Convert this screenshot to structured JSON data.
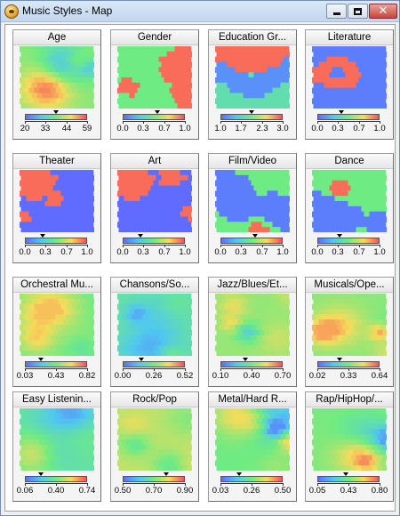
{
  "window": {
    "title": "Music Styles - Map",
    "close_glyph": "✕"
  },
  "panels": [
    {
      "title": "Age",
      "ticks": [
        "20",
        "33",
        "44",
        "59"
      ],
      "marker": 0.5,
      "seed": 11,
      "mode": "smooth",
      "cmin": 0.1,
      "cmax": 1.0
    },
    {
      "title": "Gender",
      "ticks": [
        "0.0",
        "0.3",
        "0.7",
        "1.0"
      ],
      "marker": 0.55,
      "seed": 23,
      "mode": "patchy",
      "cmin": 0.0,
      "cmax": 1.0
    },
    {
      "title": "Education Gr...",
      "ticks": [
        "1.0",
        "1.7",
        "2.3",
        "3.0"
      ],
      "marker": 0.5,
      "seed": 37,
      "mode": "band",
      "cmin": 0.0,
      "cmax": 1.0
    },
    {
      "title": "Literature",
      "ticks": [
        "0.0",
        "0.3",
        "0.7",
        "1.0"
      ],
      "marker": 0.38,
      "seed": 41,
      "mode": "blob",
      "cmin": 0.0,
      "cmax": 1.0
    },
    {
      "title": "Theater",
      "ticks": [
        "0.0",
        "0.3",
        "0.7",
        "1.0"
      ],
      "marker": 0.28,
      "seed": 53,
      "mode": "corner",
      "cmin": 0.0,
      "cmax": 1.0
    },
    {
      "title": "Art",
      "ticks": [
        "0.0",
        "0.3",
        "0.7",
        "1.0"
      ],
      "marker": 0.28,
      "seed": 61,
      "mode": "corner",
      "cmin": 0.0,
      "cmax": 1.0
    },
    {
      "title": "Film/Video",
      "ticks": [
        "0.0",
        "0.3",
        "0.7",
        "1.0"
      ],
      "marker": 0.55,
      "seed": 71,
      "mode": "patchy",
      "cmin": 0.0,
      "cmax": 1.0
    },
    {
      "title": "Dance",
      "ticks": [
        "0.0",
        "0.3",
        "0.7",
        "1.0"
      ],
      "marker": 0.35,
      "seed": 83,
      "mode": "patchy",
      "cmin": 0.0,
      "cmax": 1.0
    },
    {
      "title": "Orchestral Mu...",
      "ticks": [
        "0.03",
        "0.43",
        "0.82"
      ],
      "marker": 0.25,
      "seed": 97,
      "mode": "smooth",
      "cmin": 0.2,
      "cmax": 0.8
    },
    {
      "title": "Chansons/So...",
      "ticks": [
        "0.00",
        "0.26",
        "0.52"
      ],
      "marker": 0.3,
      "seed": 101,
      "mode": "smooth",
      "cmin": 0.15,
      "cmax": 0.7
    },
    {
      "title": "Jazz/Blues/Et...",
      "ticks": [
        "0.10",
        "0.40",
        "0.70"
      ],
      "marker": 0.4,
      "seed": 113,
      "mode": "smooth",
      "cmin": 0.25,
      "cmax": 0.9
    },
    {
      "title": "Musicals/Ope...",
      "ticks": [
        "0.02",
        "0.33",
        "0.64"
      ],
      "marker": 0.35,
      "seed": 127,
      "mode": "smooth",
      "cmin": 0.25,
      "cmax": 0.85
    },
    {
      "title": "Easy Listenin...",
      "ticks": [
        "0.06",
        "0.40",
        "0.74"
      ],
      "marker": 0.25,
      "seed": 131,
      "mode": "smooth",
      "cmin": 0.1,
      "cmax": 0.75
    },
    {
      "title": "Rock/Pop",
      "ticks": [
        "0.50",
        "0.70",
        "0.90"
      ],
      "marker": 0.7,
      "seed": 139,
      "mode": "smooth",
      "cmin": 0.3,
      "cmax": 1.0
    },
    {
      "title": "Metal/Hard R...",
      "ticks": [
        "0.03",
        "0.26",
        "0.50"
      ],
      "marker": 0.3,
      "seed": 149,
      "mode": "smooth",
      "cmin": 0.1,
      "cmax": 0.9
    },
    {
      "title": "Rap/HipHop/...",
      "ticks": [
        "0.05",
        "0.43",
        "0.80"
      ],
      "marker": 0.45,
      "seed": 157,
      "mode": "smooth",
      "cmin": 0.15,
      "cmax": 0.9
    }
  ]
}
